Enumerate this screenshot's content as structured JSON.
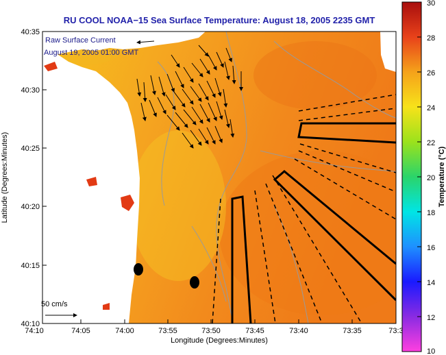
{
  "title": "RU COOL  NOAA−15  Sea Surface Temperature:  August 18, 2005 2235 GMT",
  "legend": {
    "line1": "Raw Surface Current",
    "line2": "August 19, 2005 01:00 GMT"
  },
  "scale": {
    "label": "50 cm/s"
  },
  "x_axis": {
    "label": "Longitude (Degrees:Minutes)",
    "ticks": [
      "74:10",
      "74:05",
      "74:00",
      "73:55",
      "73:50",
      "73:45",
      "73:40",
      "73:35",
      "73:3"
    ]
  },
  "y_axis": {
    "label": "Latitude (Degrees:Minutes)",
    "ticks": [
      "40:35",
      "40:30",
      "40:25",
      "40:20",
      "40:15",
      "40:10"
    ]
  },
  "colorbar": {
    "title": "Temperature (°C)",
    "ticks": [
      "30",
      "28",
      "26",
      "24",
      "22",
      "20",
      "18",
      "16",
      "14",
      "12",
      "10"
    ]
  },
  "colors": {
    "sea_warm": "#f08a1c",
    "sea_cool": "#f5c21e",
    "land": "#ffffff",
    "contour": "#9a9a9a",
    "title": "#2222aa"
  }
}
